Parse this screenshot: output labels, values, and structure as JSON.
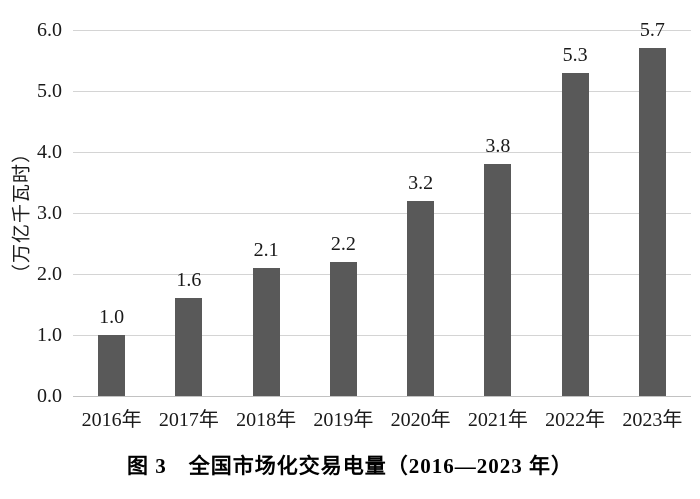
{
  "chart_data": {
    "type": "bar",
    "title": "图 3　全国市场化交易电量（2016—2023 年）",
    "ylabel": "（万亿千瓦时）",
    "xlabel": "",
    "categories": [
      "2016年",
      "2017年",
      "2018年",
      "2019年",
      "2020年",
      "2021年",
      "2022年",
      "2023年"
    ],
    "values": [
      1.0,
      1.6,
      2.1,
      2.2,
      3.2,
      3.8,
      5.3,
      5.7
    ],
    "value_labels": [
      "1.0",
      "1.6",
      "2.1",
      "2.2",
      "3.2",
      "3.8",
      "5.3",
      "5.7"
    ],
    "yticks": [
      "6.0",
      "5.0",
      "4.0",
      "3.0",
      "2.0",
      "1.0",
      "0.0"
    ],
    "ylim": [
      0,
      6
    ],
    "grid": true,
    "legend_position": "none",
    "bar_color": "#595959",
    "gridline_color": "#d4d4d4",
    "text_color": "#1a1a1a",
    "background_color": "#ffffff"
  }
}
